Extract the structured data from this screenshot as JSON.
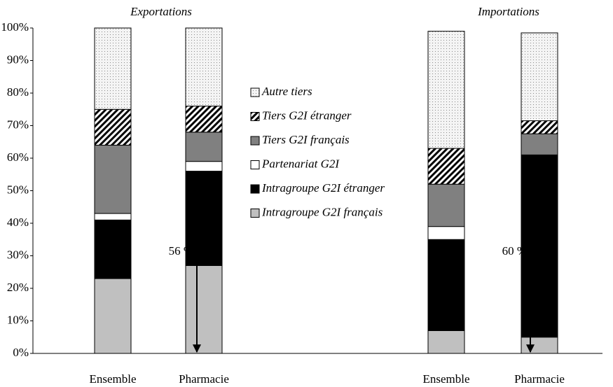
{
  "chart_data": {
    "type": "stacked_bar",
    "group_labels": [
      "Exportations",
      "Importations"
    ],
    "categories": [
      "Ensemble",
      "Pharmacie",
      "Ensemble",
      "Pharmacie"
    ],
    "series": [
      {
        "name": "Intragroupe G2I français",
        "color": "#c0c0c0",
        "values": [
          23,
          27,
          7,
          5
        ]
      },
      {
        "name": "Intragroupe G2I étranger",
        "color": "#000000",
        "values": [
          18,
          29,
          28,
          56
        ]
      },
      {
        "name": "Partenariat G2I",
        "color": "#ffffff",
        "values": [
          2,
          3,
          4,
          0
        ]
      },
      {
        "name": "Tiers G2I français",
        "color": "#808080",
        "values": [
          21,
          9,
          13,
          6.5
        ]
      },
      {
        "name": "Tiers G2I étranger",
        "color": "#ffffff",
        "pattern": "hatch",
        "values": [
          11,
          8,
          11,
          4
        ]
      },
      {
        "name": "Autre tiers",
        "color": "#f2f2f2",
        "pattern": "dots",
        "values": [
          25,
          24,
          36,
          27
        ]
      }
    ],
    "ylim": [
      0,
      100
    ],
    "yticks": [
      {
        "value": 0,
        "label": "0%"
      },
      {
        "value": 10,
        "label": "10%"
      },
      {
        "value": 20,
        "label": "20%"
      },
      {
        "value": 30,
        "label": "30%"
      },
      {
        "value": 40,
        "label": "40%"
      },
      {
        "value": 50,
        "label": "50%"
      },
      {
        "value": 60,
        "label": "60%"
      },
      {
        "value": 70,
        "label": "70%"
      },
      {
        "value": 80,
        "label": "80%"
      },
      {
        "value": 90,
        "label": "90%"
      },
      {
        "value": 100,
        "label": "100%"
      }
    ],
    "annotations": [
      {
        "label": "56 %",
        "value": 56
      },
      {
        "label": "60 %",
        "value": 60
      }
    ]
  }
}
